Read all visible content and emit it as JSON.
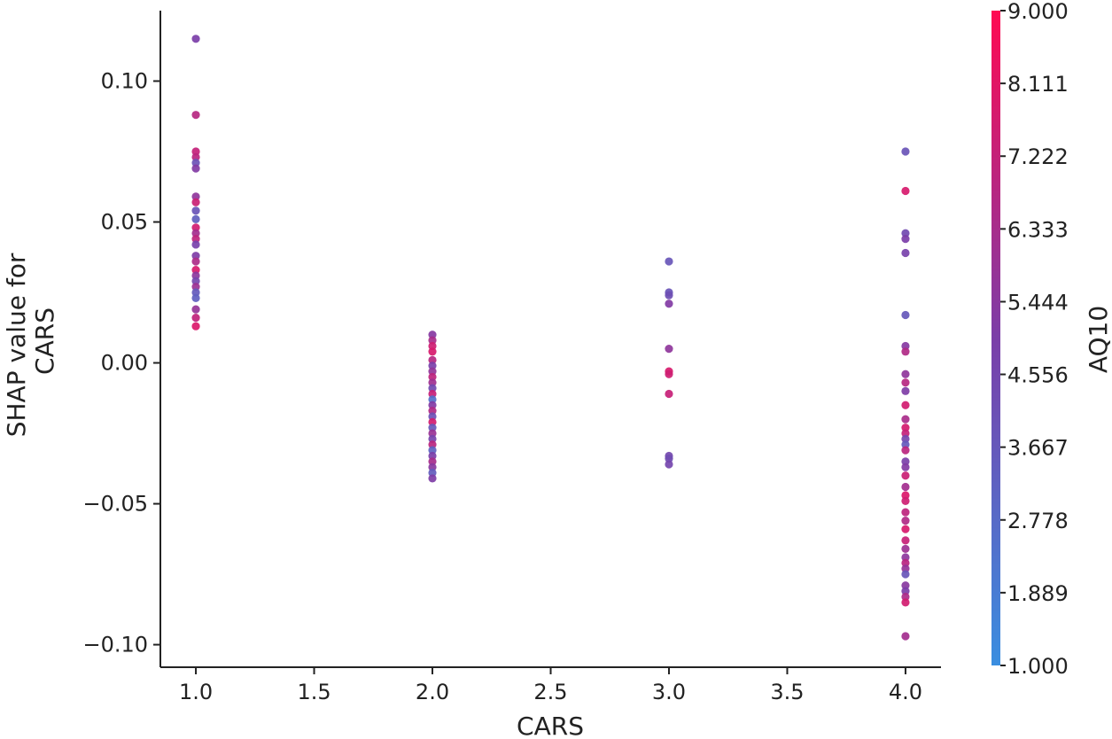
{
  "chart_data": {
    "type": "scatter",
    "title": "",
    "xlabel": "CARS",
    "ylabel_lines": [
      "SHAP value for",
      "CARS"
    ],
    "xlim": [
      0.85,
      4.15
    ],
    "ylim": [
      -0.108,
      0.125
    ],
    "x_ticks": [
      1.0,
      1.5,
      2.0,
      2.5,
      3.0,
      3.5,
      4.0
    ],
    "x_tick_labels": [
      "1.0",
      "1.5",
      "2.0",
      "2.5",
      "3.0",
      "3.5",
      "4.0"
    ],
    "y_ticks": [
      0.1,
      0.05,
      0.0,
      -0.05,
      -0.1
    ],
    "y_tick_labels": [
      "0.10",
      "0.05",
      "0.00",
      "−0.05",
      "−0.10"
    ],
    "grid": false,
    "colorbar": {
      "label": "AQ10",
      "min": 1.0,
      "max": 9.0,
      "tick_values": [
        9.0,
        8.111,
        7.222,
        6.333,
        5.444,
        4.556,
        3.667,
        2.778,
        1.889,
        1.0
      ],
      "tick_labels": [
        "9.000",
        "8.111",
        "7.222",
        "6.333",
        "5.444",
        "4.556",
        "3.667",
        "2.778",
        "1.889",
        "1.000"
      ],
      "color_low": "#3a8ee0",
      "color_mid": "#7b3ea8",
      "color_high": "#ff0a52"
    },
    "points": [
      {
        "x": 1,
        "y": 0.115,
        "c": 5.0
      },
      {
        "x": 1,
        "y": 0.088,
        "c": 6.8
      },
      {
        "x": 1,
        "y": 0.075,
        "c": 7.2
      },
      {
        "x": 1,
        "y": 0.073,
        "c": 6.9
      },
      {
        "x": 1,
        "y": 0.071,
        "c": 4.0
      },
      {
        "x": 1,
        "y": 0.069,
        "c": 5.2
      },
      {
        "x": 1,
        "y": 0.059,
        "c": 5.6
      },
      {
        "x": 1,
        "y": 0.057,
        "c": 7.4
      },
      {
        "x": 1,
        "y": 0.054,
        "c": 3.9
      },
      {
        "x": 1,
        "y": 0.051,
        "c": 3.4
      },
      {
        "x": 1,
        "y": 0.048,
        "c": 7.6
      },
      {
        "x": 1,
        "y": 0.046,
        "c": 6.2
      },
      {
        "x": 1,
        "y": 0.044,
        "c": 7.0
      },
      {
        "x": 1,
        "y": 0.042,
        "c": 4.8
      },
      {
        "x": 1,
        "y": 0.038,
        "c": 5.1
      },
      {
        "x": 1,
        "y": 0.036,
        "c": 6.5
      },
      {
        "x": 1,
        "y": 0.033,
        "c": 7.8
      },
      {
        "x": 1,
        "y": 0.031,
        "c": 5.5
      },
      {
        "x": 1,
        "y": 0.029,
        "c": 4.6
      },
      {
        "x": 1,
        "y": 0.027,
        "c": 6.0
      },
      {
        "x": 1,
        "y": 0.025,
        "c": 3.6
      },
      {
        "x": 1,
        "y": 0.023,
        "c": 3.3
      },
      {
        "x": 1,
        "y": 0.019,
        "c": 5.8
      },
      {
        "x": 1,
        "y": 0.016,
        "c": 7.1
      },
      {
        "x": 1,
        "y": 0.013,
        "c": 7.9
      },
      {
        "x": 2,
        "y": 0.01,
        "c": 5.3
      },
      {
        "x": 2,
        "y": 0.008,
        "c": 6.4
      },
      {
        "x": 2,
        "y": 0.006,
        "c": 7.5
      },
      {
        "x": 2,
        "y": 0.004,
        "c": 7.8
      },
      {
        "x": 2,
        "y": 0.001,
        "c": 6.8
      },
      {
        "x": 2,
        "y": -0.001,
        "c": 4.9
      },
      {
        "x": 2,
        "y": -0.003,
        "c": 5.7
      },
      {
        "x": 2,
        "y": -0.005,
        "c": 7.0
      },
      {
        "x": 2,
        "y": -0.007,
        "c": 6.1
      },
      {
        "x": 2,
        "y": -0.009,
        "c": 4.4
      },
      {
        "x": 2,
        "y": -0.011,
        "c": 7.3
      },
      {
        "x": 2,
        "y": -0.013,
        "c": 2.6
      },
      {
        "x": 2,
        "y": -0.015,
        "c": 5.2
      },
      {
        "x": 2,
        "y": -0.017,
        "c": 6.6
      },
      {
        "x": 2,
        "y": -0.019,
        "c": 4.1
      },
      {
        "x": 2,
        "y": -0.021,
        "c": 7.6
      },
      {
        "x": 2,
        "y": -0.023,
        "c": 3.7
      },
      {
        "x": 2,
        "y": -0.025,
        "c": 5.9
      },
      {
        "x": 2,
        "y": -0.027,
        "c": 4.7
      },
      {
        "x": 2,
        "y": -0.029,
        "c": 6.9
      },
      {
        "x": 2,
        "y": -0.031,
        "c": 3.2
      },
      {
        "x": 2,
        "y": -0.033,
        "c": 5.0
      },
      {
        "x": 2,
        "y": -0.035,
        "c": 6.3
      },
      {
        "x": 2,
        "y": -0.037,
        "c": 5.4
      },
      {
        "x": 2,
        "y": -0.039,
        "c": 3.5
      },
      {
        "x": 2,
        "y": -0.041,
        "c": 5.1
      },
      {
        "x": 3,
        "y": 0.036,
        "c": 3.8
      },
      {
        "x": 3,
        "y": 0.025,
        "c": 3.9
      },
      {
        "x": 3,
        "y": 0.024,
        "c": 4.2
      },
      {
        "x": 3,
        "y": 0.021,
        "c": 5.2
      },
      {
        "x": 3,
        "y": 0.005,
        "c": 5.6
      },
      {
        "x": 3,
        "y": -0.003,
        "c": 7.8
      },
      {
        "x": 3,
        "y": -0.004,
        "c": 7.5
      },
      {
        "x": 3,
        "y": -0.011,
        "c": 7.3
      },
      {
        "x": 3,
        "y": -0.033,
        "c": 4.5
      },
      {
        "x": 3,
        "y": -0.034,
        "c": 4.3
      },
      {
        "x": 3,
        "y": -0.036,
        "c": 4.6
      },
      {
        "x": 4,
        "y": 0.075,
        "c": 3.9
      },
      {
        "x": 4,
        "y": 0.061,
        "c": 7.8
      },
      {
        "x": 4,
        "y": 0.046,
        "c": 4.4
      },
      {
        "x": 4,
        "y": 0.044,
        "c": 5.0
      },
      {
        "x": 4,
        "y": 0.039,
        "c": 4.8
      },
      {
        "x": 4,
        "y": 0.017,
        "c": 3.7
      },
      {
        "x": 4,
        "y": 0.006,
        "c": 5.3
      },
      {
        "x": 4,
        "y": 0.004,
        "c": 6.6
      },
      {
        "x": 4,
        "y": -0.004,
        "c": 5.6
      },
      {
        "x": 4,
        "y": -0.007,
        "c": 6.8
      },
      {
        "x": 4,
        "y": -0.01,
        "c": 5.1
      },
      {
        "x": 4,
        "y": -0.015,
        "c": 7.6
      },
      {
        "x": 4,
        "y": -0.02,
        "c": 6.4
      },
      {
        "x": 4,
        "y": -0.023,
        "c": 7.7
      },
      {
        "x": 4,
        "y": -0.025,
        "c": 7.2
      },
      {
        "x": 4,
        "y": -0.027,
        "c": 4.6
      },
      {
        "x": 4,
        "y": -0.029,
        "c": 3.6
      },
      {
        "x": 4,
        "y": -0.031,
        "c": 6.9
      },
      {
        "x": 4,
        "y": -0.035,
        "c": 4.9
      },
      {
        "x": 4,
        "y": -0.037,
        "c": 5.2
      },
      {
        "x": 4,
        "y": -0.04,
        "c": 7.4
      },
      {
        "x": 4,
        "y": -0.044,
        "c": 6.2
      },
      {
        "x": 4,
        "y": -0.047,
        "c": 7.9
      },
      {
        "x": 4,
        "y": -0.049,
        "c": 7.5
      },
      {
        "x": 4,
        "y": -0.053,
        "c": 7.0
      },
      {
        "x": 4,
        "y": -0.056,
        "c": 6.6
      },
      {
        "x": 4,
        "y": -0.059,
        "c": 7.8
      },
      {
        "x": 4,
        "y": -0.063,
        "c": 7.3
      },
      {
        "x": 4,
        "y": -0.066,
        "c": 6.0
      },
      {
        "x": 4,
        "y": -0.069,
        "c": 5.5
      },
      {
        "x": 4,
        "y": -0.071,
        "c": 6.9
      },
      {
        "x": 4,
        "y": -0.073,
        "c": 5.8
      },
      {
        "x": 4,
        "y": -0.075,
        "c": 3.8
      },
      {
        "x": 4,
        "y": -0.079,
        "c": 5.4
      },
      {
        "x": 4,
        "y": -0.081,
        "c": 5.0
      },
      {
        "x": 4,
        "y": -0.083,
        "c": 6.5
      },
      {
        "x": 4,
        "y": -0.085,
        "c": 7.6
      },
      {
        "x": 4,
        "y": -0.097,
        "c": 6.2
      }
    ]
  }
}
